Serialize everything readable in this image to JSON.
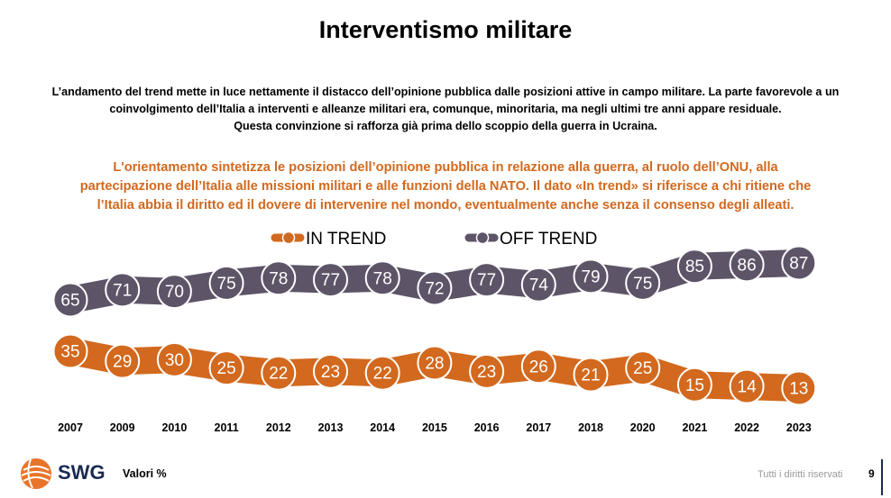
{
  "title": "Interventismo militare",
  "intro": [
    "L’andamento del trend mette in luce nettamente il distacco dell’opinione pubblica dalle posizioni attive in campo militare. La parte favorevole a un",
    "coinvolgimento dell’Italia a interventi e alleanze militari era, comunque, minoritaria, ma negli ultimi tre anni appare residuale.",
    "Questa convinzione si rafforza già prima dello scoppio della guerra in Ucraina."
  ],
  "highlight": [
    "L'orientamento sintetizza le posizioni dell’opinione pubblica in relazione alla guerra, al ruolo dell’ONU, alla",
    "partecipazione dell’Italia alle missioni militari e alle funzioni della NATO. Il dato «In trend» si riferisce a chi ritiene che",
    "l’Italia abbia il diritto ed il dovere di intervenire nel mondo, eventualmente anche senza il consenso degli alleati."
  ],
  "colors": {
    "in_trend": "#d2691e",
    "off_trend": "#5e5468",
    "text_orange": "#d2691e"
  },
  "chart_data": {
    "type": "line",
    "x": [
      "2007",
      "2009",
      "2010",
      "2011",
      "2012",
      "2013",
      "2014",
      "2015",
      "2016",
      "2017",
      "2018",
      "2020",
      "2021",
      "2022",
      "2023"
    ],
    "series": [
      {
        "name": "OFF TREND",
        "values": [
          65,
          71,
          70,
          75,
          78,
          77,
          78,
          72,
          77,
          74,
          79,
          75,
          85,
          86,
          87
        ]
      },
      {
        "name": "IN TREND",
        "values": [
          35,
          29,
          30,
          25,
          22,
          23,
          22,
          28,
          23,
          26,
          21,
          25,
          15,
          14,
          13
        ]
      }
    ],
    "legend_placement": "top-center",
    "grid": false
  },
  "footer": {
    "brand": "SWG",
    "unit_label": "Valori %",
    "rights": "Tutti i diritti riservati",
    "page": "9"
  }
}
